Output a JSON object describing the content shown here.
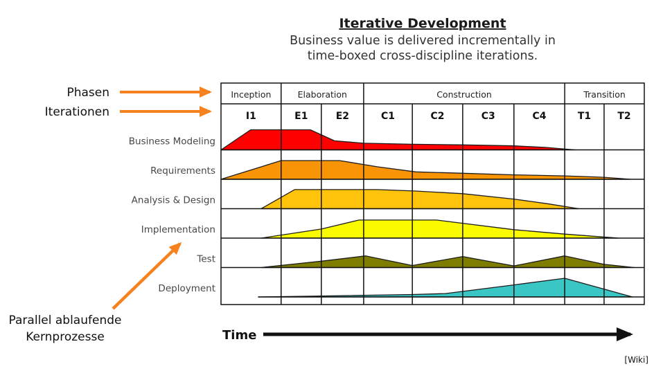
{
  "title": {
    "heading": "Iterative Development",
    "subtitle_line1": "Business value is delivered incrementally in",
    "subtitle_line2": "time-boxed cross-discipline iterations."
  },
  "annotations": {
    "phases_label": "Phasen",
    "iterations_label": "Iterationen",
    "parallel_line1": "Parallel ablaufende",
    "parallel_line2": "Kernprozesse",
    "time_label": "Time",
    "attribution": "[Wiki]",
    "arrow_color": "#F5821F"
  },
  "chart_data": {
    "type": "area",
    "title": "Iterative Development",
    "xlabel": "Time",
    "description": "RUP hump chart: relative effort of each discipline across time-boxed iterations",
    "phases": [
      {
        "label": "Inception",
        "span": [
          0,
          1
        ]
      },
      {
        "label": "Elaboration",
        "span": [
          1,
          3
        ]
      },
      {
        "label": "Construction",
        "span": [
          3,
          7
        ]
      },
      {
        "label": "Transition",
        "span": [
          7,
          9
        ]
      }
    ],
    "iterations": [
      "I1",
      "E1",
      "E2",
      "C1",
      "C2",
      "C3",
      "C4",
      "T1",
      "T2"
    ],
    "column_bounds_frac": [
      0,
      0.142,
      0.237,
      0.337,
      0.452,
      0.571,
      0.692,
      0.812,
      0.905,
      1
    ],
    "effort_scale": "0 = no effort, 1 = maximum hump height",
    "disciplines": [
      {
        "name": "Business Modeling",
        "color": "#FF0000",
        "points": [
          [
            0,
            0
          ],
          [
            0.07,
            1
          ],
          [
            0.211,
            1
          ],
          [
            0.268,
            0.45
          ],
          [
            0.337,
            0.33
          ],
          [
            0.452,
            0.28
          ],
          [
            0.571,
            0.25
          ],
          [
            0.692,
            0.2
          ],
          [
            0.768,
            0.12
          ],
          [
            0.836,
            0
          ]
        ]
      },
      {
        "name": "Requirements",
        "color": "#F89406",
        "points": [
          [
            0,
            0
          ],
          [
            0.142,
            0.93
          ],
          [
            0.28,
            0.93
          ],
          [
            0.37,
            0.62
          ],
          [
            0.46,
            0.37
          ],
          [
            0.571,
            0.3
          ],
          [
            0.692,
            0.22
          ],
          [
            0.812,
            0.17
          ],
          [
            0.905,
            0.1
          ],
          [
            0.967,
            0
          ]
        ]
      },
      {
        "name": "Analysis & Design",
        "color": "#FFC30B",
        "points": [
          [
            0.095,
            0
          ],
          [
            0.174,
            0.95
          ],
          [
            0.37,
            0.95
          ],
          [
            0.46,
            0.88
          ],
          [
            0.571,
            0.75
          ],
          [
            0.692,
            0.48
          ],
          [
            0.771,
            0.25
          ],
          [
            0.845,
            0
          ]
        ]
      },
      {
        "name": "Implementation",
        "color": "#FBFB00",
        "points": [
          [
            0.095,
            0
          ],
          [
            0.237,
            0.45
          ],
          [
            0.326,
            0.9
          ],
          [
            0.509,
            0.9
          ],
          [
            0.692,
            0.42
          ],
          [
            0.812,
            0.2
          ],
          [
            0.939,
            0
          ]
        ]
      },
      {
        "name": "Test",
        "color": "#7E7D00",
        "points": [
          [
            0.095,
            0
          ],
          [
            0.239,
            0.32
          ],
          [
            0.342,
            0.58
          ],
          [
            0.452,
            0.1
          ],
          [
            0.571,
            0.55
          ],
          [
            0.692,
            0.08
          ],
          [
            0.812,
            0.58
          ],
          [
            0.905,
            0.16
          ],
          [
            0.976,
            0
          ]
        ]
      },
      {
        "name": "Deployment",
        "color": "#3BC6C6",
        "points": [
          [
            0.088,
            0
          ],
          [
            0.239,
            0.05
          ],
          [
            0.452,
            0.12
          ],
          [
            0.53,
            0.17
          ],
          [
            0.692,
            0.6
          ],
          [
            0.812,
            0.93
          ],
          [
            0.972,
            0
          ]
        ]
      }
    ]
  }
}
